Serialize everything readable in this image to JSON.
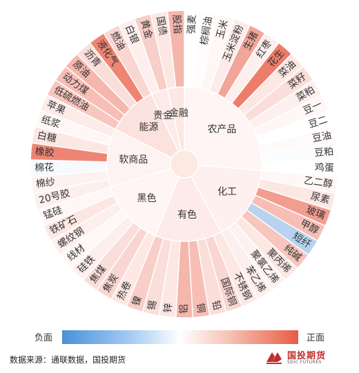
{
  "chart_data": {
    "type": "sunburst",
    "legend": {
      "negative_label": "负面",
      "positive_label": "正面",
      "placement": "bottom"
    },
    "groups": [
      {
        "name": "农产品",
        "value": 0.1,
        "items": [
          {
            "name": "强麦",
            "value": 0.0
          },
          {
            "name": "棕榈油",
            "value": 0.02
          },
          {
            "name": "玉米",
            "value": 0.05
          },
          {
            "name": "玉米淀粉",
            "value": 0.12
          },
          {
            "name": "生猪",
            "value": 0.55
          },
          {
            "name": "红枣",
            "value": 0.1
          },
          {
            "name": "花生",
            "value": 0.8
          },
          {
            "name": "菜油",
            "value": 0.15
          },
          {
            "name": "菜籽",
            "value": 0.2
          },
          {
            "name": "菜粕",
            "value": 0.1
          },
          {
            "name": "豆一",
            "value": 0.05
          },
          {
            "name": "豆二",
            "value": 0.0
          },
          {
            "name": "豆油",
            "value": 0.03
          },
          {
            "name": "豆粕",
            "value": -0.03
          },
          {
            "name": "鸡蛋",
            "value": 0.0
          }
        ]
      },
      {
        "name": "化工",
        "value": 0.15,
        "items": [
          {
            "name": "乙二醇",
            "value": 0.05
          },
          {
            "name": "尿素",
            "value": 0.15
          },
          {
            "name": "玻璃",
            "value": 0.6
          },
          {
            "name": "甲醇",
            "value": 0.4
          },
          {
            "name": "短纤",
            "value": -0.4
          },
          {
            "name": "纯碱",
            "value": 0.35
          },
          {
            "name": "聚丙烯",
            "value": 0.15
          },
          {
            "name": "聚氯乙烯",
            "value": 0.08
          },
          {
            "name": "苯乙烯",
            "value": 0.1
          }
        ]
      },
      {
        "name": "有色",
        "value": 0.2,
        "items": [
          {
            "name": "不锈钢",
            "value": 0.15
          },
          {
            "name": "国际铜",
            "value": 0.25
          },
          {
            "name": "铅",
            "value": 0.2
          },
          {
            "name": "铜",
            "value": 0.4
          },
          {
            "name": "铝",
            "value": 0.45
          },
          {
            "name": "锌",
            "value": 0.15
          },
          {
            "name": "锡",
            "value": 0.2
          },
          {
            "name": "镍",
            "value": 0.3
          }
        ]
      },
      {
        "name": "黑色",
        "value": 0.1,
        "items": [
          {
            "name": "热卷",
            "value": 0.15
          },
          {
            "name": "焦炭",
            "value": 0.25
          },
          {
            "name": "焦煤",
            "value": 0.2
          },
          {
            "name": "硅铁",
            "value": 0.1
          },
          {
            "name": "线材",
            "value": 0.05
          },
          {
            "name": "螺纹钢",
            "value": 0.1
          },
          {
            "name": "铁矿石",
            "value": 0.15
          },
          {
            "name": "锰硅",
            "value": 0.05
          }
        ]
      },
      {
        "name": "软商品",
        "value": 0.12,
        "items": [
          {
            "name": "20号胶",
            "value": 0.1
          },
          {
            "name": "棉纱",
            "value": 0.08
          },
          {
            "name": "棉花",
            "value": -0.05
          },
          {
            "name": "橡胶",
            "value": 0.75
          },
          {
            "name": "白糖",
            "value": 0.15
          },
          {
            "name": "纸浆",
            "value": 0.05
          },
          {
            "name": "苹果",
            "value": 0.12
          }
        ]
      },
      {
        "name": "能源",
        "value": 0.3,
        "items": [
          {
            "name": "低硫燃油",
            "value": 0.35
          },
          {
            "name": "动力煤",
            "value": 0.4
          },
          {
            "name": "原油",
            "value": 0.45
          },
          {
            "name": "沥青",
            "value": 0.2
          },
          {
            "name": "液化气",
            "value": 0.75
          },
          {
            "name": "燃油",
            "value": 0.25
          }
        ]
      },
      {
        "name": "贵金属",
        "value": 0.2,
        "items": [
          {
            "name": "白银",
            "value": 0.1
          },
          {
            "name": "黄金",
            "value": 0.3
          }
        ]
      },
      {
        "name": "金融",
        "value": 0.25,
        "items": [
          {
            "name": "国债",
            "value": 0.15
          },
          {
            "name": "股指",
            "value": 0.45
          }
        ]
      }
    ]
  },
  "source_text": "数据来源：通联数据，国投期货",
  "logo": {
    "name": "国投期货",
    "subtitle": "SDIC FUTURES"
  }
}
